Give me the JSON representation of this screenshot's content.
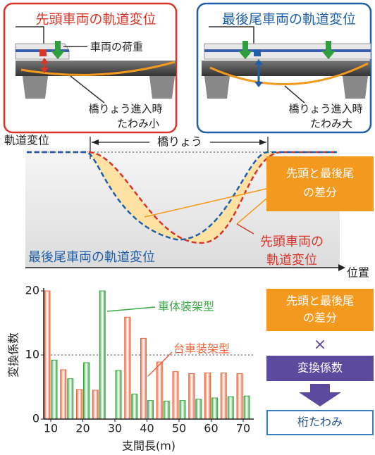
{
  "panels": [
    {
      "title": "先頭車両の軌道変位",
      "load_label": "車両の荷重",
      "caption": [
        "橋りょう進入時",
        "たわみ小"
      ]
    },
    {
      "title": "最後尾車両の軌道変位",
      "caption": [
        "橋りょう進入時",
        "たわみ大"
      ]
    }
  ],
  "profile": {
    "y_label": "軌道変位",
    "x_label": "位置",
    "bridge_label": "橋りょう",
    "diff_lines": [
      "先頭と最後尾",
      "の差分"
    ],
    "trailing_label": "最後尾車両の軌道変位",
    "leading_lines": [
      "先頭車両の",
      "軌道変位"
    ]
  },
  "chart_data": {
    "type": "bar",
    "x_label": "支間長(m)",
    "y_label": "変換係数",
    "x": [
      10,
      15,
      20,
      25,
      30,
      35,
      40,
      45,
      50,
      55,
      60,
      65,
      70
    ],
    "xlim": [
      7.8,
      73.3
    ],
    "xticks": [
      10,
      20,
      30,
      40,
      50,
      60,
      70
    ],
    "ylim": [
      0,
      20
    ],
    "yticks": [
      0,
      10,
      20
    ],
    "grid": true,
    "series": [
      {
        "name": "台車装架型",
        "color": "#f0643c",
        "values": [
          20,
          7.7,
          4.6,
          4.5,
          null,
          15.9,
          12.6,
          8.9,
          7.4,
          7.1,
          7.2,
          7.2,
          7.1
        ]
      },
      {
        "name": "車体装架型",
        "color": "#3aa845",
        "values": [
          9.2,
          6.3,
          8.8,
          20,
          7.6,
          3.9,
          2.9,
          2.8,
          2.9,
          3.1,
          3.3,
          3.5,
          3.6
        ]
      }
    ]
  },
  "flow": {
    "diff_lines": [
      "先頭と最後尾",
      "の差分"
    ],
    "times": "×",
    "factor": "変換係数",
    "result": "桁たわみ"
  }
}
